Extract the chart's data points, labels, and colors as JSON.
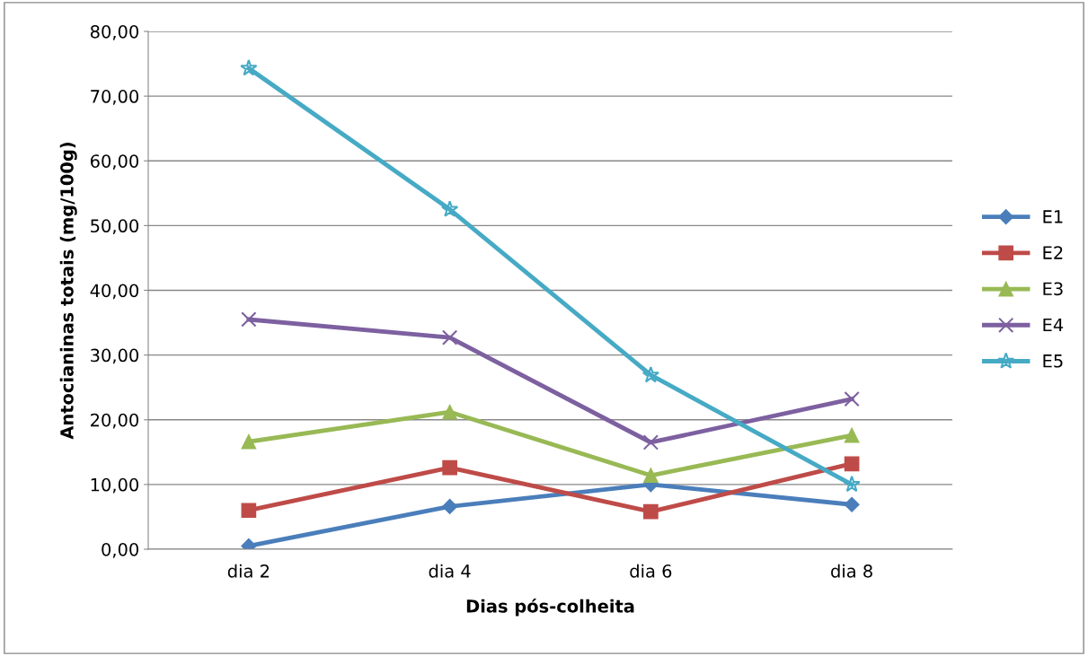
{
  "chart_data": {
    "type": "line",
    "xlabel": "Dias pós-colheita",
    "ylabel": "Antocianinas totais (mg/100g)",
    "categories": [
      "dia 2",
      "dia 4",
      "dia 6",
      "dia 8"
    ],
    "series": [
      {
        "name": "E1",
        "color": "#4a7ebb",
        "marker": "diamond",
        "values": [
          0.5,
          6.6,
          10.0,
          6.9
        ]
      },
      {
        "name": "E2",
        "color": "#be4b48",
        "marker": "square",
        "values": [
          6.0,
          12.6,
          5.8,
          13.2
        ]
      },
      {
        "name": "E3",
        "color": "#98b954",
        "marker": "triangle",
        "values": [
          16.6,
          21.2,
          11.4,
          17.6
        ]
      },
      {
        "name": "E4",
        "color": "#7d60a0",
        "marker": "cross",
        "values": [
          35.5,
          32.7,
          16.5,
          23.2
        ]
      },
      {
        "name": "E5",
        "color": "#46aac5",
        "marker": "star",
        "values": [
          74.3,
          52.5,
          26.9,
          10.0
        ]
      }
    ],
    "ylim": [
      0,
      80
    ],
    "yticks": [
      {
        "value": 0,
        "label": "0,00"
      },
      {
        "value": 10,
        "label": "10,00"
      },
      {
        "value": 20,
        "label": "20,00"
      },
      {
        "value": 30,
        "label": "30,00"
      },
      {
        "value": 40,
        "label": "40,00"
      },
      {
        "value": 50,
        "label": "50,00"
      },
      {
        "value": 60,
        "label": "60,00"
      },
      {
        "value": 70,
        "label": "70,00"
      },
      {
        "value": 80,
        "label": "80,00"
      }
    ],
    "grid": "y",
    "legend": "right",
    "line_style": "solid"
  }
}
